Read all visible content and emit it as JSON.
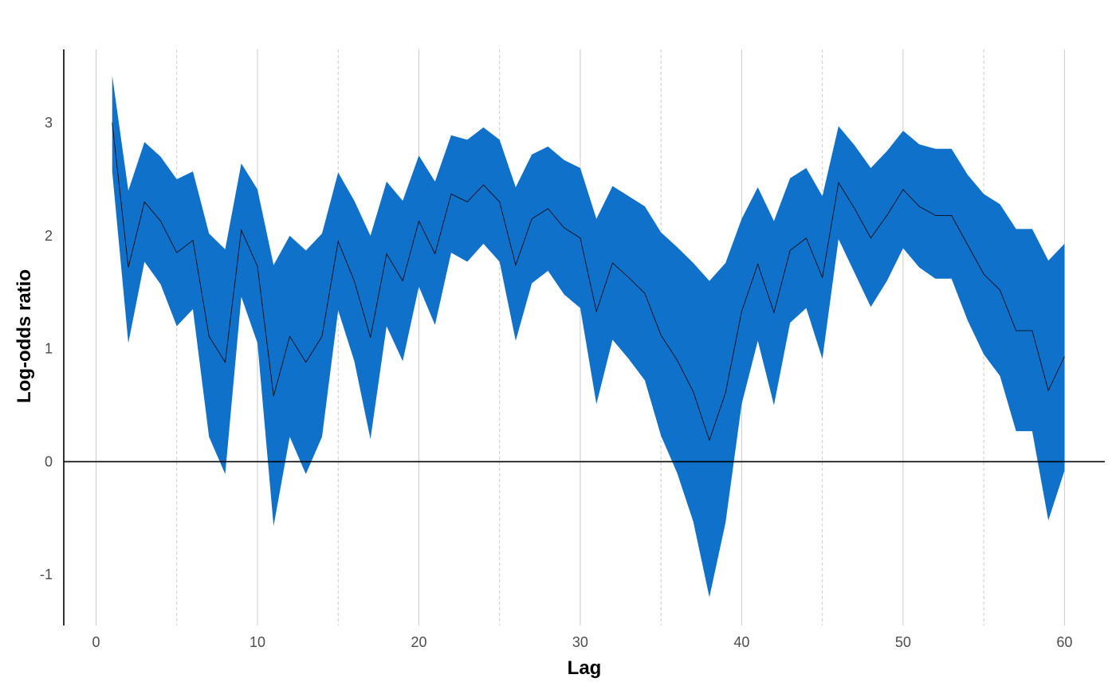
{
  "chart_data": {
    "type": "area",
    "xlabel": "Lag",
    "ylabel": "Log-odds ratio",
    "xlim": [
      -2,
      62.5
    ],
    "ylim": [
      -1.45,
      3.65
    ],
    "xticks": [
      0,
      10,
      20,
      30,
      40,
      50,
      60
    ],
    "xtick_labels": [
      "0",
      "10",
      "20",
      "30",
      "40",
      "50",
      "60"
    ],
    "x_minor_ticks": [
      5,
      15,
      25,
      35,
      45,
      55
    ],
    "yticks": [
      -1,
      0,
      1,
      2,
      3
    ],
    "ytick_labels": [
      "-1",
      "0",
      "1",
      "2",
      "3"
    ],
    "grid": "vertical",
    "reference_line": 0,
    "x": [
      1,
      2,
      3,
      4,
      5,
      6,
      7,
      8,
      9,
      10,
      11,
      12,
      13,
      14,
      15,
      16,
      17,
      18,
      19,
      20,
      21,
      22,
      23,
      24,
      25,
      26,
      27,
      28,
      29,
      30,
      31,
      32,
      33,
      34,
      35,
      36,
      37,
      38,
      39,
      40,
      41,
      42,
      43,
      44,
      45,
      46,
      47,
      48,
      49,
      50,
      51,
      52,
      53,
      54,
      55,
      56,
      57,
      58,
      59,
      60
    ],
    "series": [
      {
        "role": "estimate",
        "values": [
          3.0,
          1.72,
          2.3,
          2.13,
          1.85,
          1.96,
          1.11,
          0.88,
          2.05,
          1.73,
          0.58,
          1.11,
          0.88,
          1.11,
          1.95,
          1.6,
          1.1,
          1.84,
          1.6,
          2.13,
          1.84,
          2.37,
          2.3,
          2.45,
          2.3,
          1.74,
          2.15,
          2.24,
          2.07,
          1.98,
          1.33,
          1.76,
          1.63,
          1.49,
          1.12,
          0.9,
          0.62,
          0.19,
          0.61,
          1.33,
          1.75,
          1.32,
          1.87,
          1.98,
          1.63,
          2.47,
          2.24,
          1.98,
          2.18,
          2.41,
          2.26,
          2.18,
          2.18,
          1.92,
          1.66,
          1.52,
          1.16,
          1.16,
          0.63,
          0.93
        ]
      },
      {
        "role": "upper",
        "values": [
          3.42,
          2.4,
          2.83,
          2.7,
          2.5,
          2.57,
          2.02,
          1.88,
          2.64,
          2.41,
          1.74,
          2.0,
          1.87,
          2.02,
          2.56,
          2.31,
          2.0,
          2.48,
          2.31,
          2.71,
          2.48,
          2.89,
          2.85,
          2.96,
          2.85,
          2.43,
          2.72,
          2.79,
          2.67,
          2.6,
          2.15,
          2.44,
          2.35,
          2.26,
          2.03,
          1.9,
          1.76,
          1.6,
          1.76,
          2.15,
          2.43,
          2.13,
          2.51,
          2.6,
          2.35,
          2.97,
          2.8,
          2.6,
          2.75,
          2.93,
          2.81,
          2.77,
          2.77,
          2.54,
          2.37,
          2.28,
          2.06,
          2.06,
          1.78,
          1.93
        ]
      },
      {
        "role": "lower",
        "values": [
          2.57,
          1.05,
          1.77,
          1.57,
          1.2,
          1.35,
          0.22,
          -0.11,
          1.46,
          1.05,
          -0.57,
          0.22,
          -0.11,
          0.22,
          1.34,
          0.89,
          0.2,
          1.2,
          0.89,
          1.55,
          1.21,
          1.85,
          1.77,
          1.93,
          1.77,
          1.07,
          1.58,
          1.69,
          1.48,
          1.36,
          0.51,
          1.08,
          0.91,
          0.72,
          0.23,
          -0.1,
          -0.53,
          -1.2,
          -0.54,
          0.51,
          1.07,
          0.5,
          1.23,
          1.36,
          0.91,
          1.97,
          1.67,
          1.37,
          1.6,
          1.89,
          1.72,
          1.62,
          1.62,
          1.25,
          0.95,
          0.76,
          0.27,
          0.27,
          -0.52,
          -0.08
        ]
      }
    ],
    "band_color": "#0f71c9",
    "line_color": "#000000"
  }
}
